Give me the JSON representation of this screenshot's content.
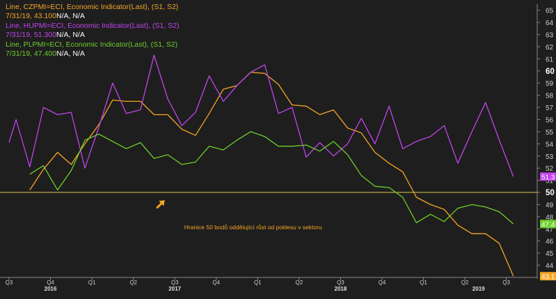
{
  "chart_data": {
    "type": "line",
    "title": "",
    "xlabel": "",
    "ylabel": "",
    "ylim": [
      43,
      65.5
    ],
    "y_ticks": [
      44,
      45,
      46,
      47,
      48,
      49,
      50,
      51,
      52,
      53,
      54,
      55,
      56,
      57,
      58,
      59,
      60,
      61,
      62,
      63,
      64,
      65
    ],
    "y_major_ticks": [
      50,
      60
    ],
    "x_range": [
      0,
      13
    ],
    "x_ticks": [
      {
        "label": "Q3",
        "x": 0
      },
      {
        "label": "Q4",
        "x": 1
      },
      {
        "label": "Q1",
        "x": 2
      },
      {
        "label": "Q2",
        "x": 3
      },
      {
        "label": "Q3",
        "x": 4
      },
      {
        "label": "Q4",
        "x": 5
      },
      {
        "label": "Q1",
        "x": 6
      },
      {
        "label": "Q2",
        "x": 7
      },
      {
        "label": "Q3",
        "x": 8
      },
      {
        "label": "Q4",
        "x": 9
      },
      {
        "label": "Q1",
        "x": 10
      },
      {
        "label": "Q2",
        "x": 11
      },
      {
        "label": "Q3",
        "x": 12
      }
    ],
    "year_labels": [
      {
        "label": "2016",
        "x": 1
      },
      {
        "label": "2017",
        "x": 4
      },
      {
        "label": "2018",
        "x": 8
      },
      {
        "label": "2019",
        "x": 11.33
      }
    ],
    "reference_line": {
      "value": 50,
      "color": "#e6c84a"
    },
    "annotation": {
      "text": "Hranice 50 bodů oddělující růst od poklesu v sektoru",
      "x": 5.1,
      "y": 47.3,
      "color": "#f5a623"
    },
    "arrow_annotation": {
      "x": 3.65,
      "y": 49.0,
      "color": "#f5a623"
    },
    "series": [
      {
        "name": "CZPMI",
        "color": "#f5a623",
        "legend_name": "Line, CZPMI=ECI, Economic Indicator(Last), (S1, S2)",
        "legend_value": "7/31/19, 43.100",
        "legend_extra": "N/A, N/A",
        "last_label": "43.1",
        "x": [
          0.5,
          0.83,
          1.17,
          1.5,
          1.83,
          2.17,
          2.5,
          2.83,
          3.17,
          3.5,
          3.83,
          4.17,
          4.5,
          4.83,
          5.17,
          5.5,
          5.83,
          6.17,
          6.5,
          6.83,
          7.17,
          7.5,
          7.83,
          8.17,
          8.5,
          8.83,
          9.17,
          9.5,
          9.83,
          10.17,
          10.5,
          10.83,
          11.17,
          11.5,
          11.83,
          12.17
        ],
        "values": [
          50.2,
          51.9,
          53.3,
          52.3,
          54.0,
          55.6,
          57.6,
          57.5,
          57.5,
          56.4,
          56.4,
          55.2,
          54.7,
          56.5,
          58.5,
          58.8,
          59.9,
          59.8,
          58.9,
          57.2,
          57.1,
          56.4,
          56.8,
          55.3,
          54.9,
          53.3,
          52.4,
          51.7,
          49.6,
          49.0,
          48.6,
          47.3,
          46.6,
          46.6,
          45.8,
          43.1
        ]
      },
      {
        "name": "HUPMI",
        "color": "#c244ee",
        "legend_name": "Line, HUPMI=ECI, Economic Indicator(Last), (S1, S2)",
        "legend_value": "7/31/19, 51.300",
        "legend_extra": "N/A, N/A",
        "last_label": "51.3",
        "x": [
          0,
          0.17,
          0.5,
          0.83,
          1.17,
          1.5,
          1.83,
          2.17,
          2.5,
          2.83,
          3.17,
          3.5,
          3.83,
          4.17,
          4.5,
          4.83,
          5.17,
          5.5,
          5.83,
          6.17,
          6.5,
          6.83,
          7.17,
          7.5,
          7.83,
          8.17,
          8.5,
          8.83,
          9.17,
          9.5,
          9.83,
          10.17,
          10.5,
          10.83,
          11.17,
          11.5,
          11.83,
          12.17
        ],
        "values": [
          54.1,
          56.0,
          52.1,
          57.0,
          56.4,
          56.6,
          52.0,
          55.4,
          59.0,
          56.5,
          56.8,
          61.3,
          57.7,
          55.5,
          56.6,
          59.6,
          57.5,
          58.8,
          59.9,
          60.5,
          56.5,
          57.0,
          52.9,
          54.1,
          53.0,
          54.0,
          56.1,
          54.0,
          57.1,
          53.6,
          54.2,
          54.6,
          55.5,
          52.4,
          55.0,
          57.4,
          54.3,
          51.3
        ]
      },
      {
        "name": "PLPMI",
        "color": "#6ecf2a",
        "legend_name": "Line, PLPMI=ECI, Economic Indicator(Last), (S1, S2)",
        "legend_value": "7/31/19, 47.400",
        "legend_extra": "N/A, N/A",
        "last_label": "47.4",
        "x": [
          0.5,
          0.83,
          1.17,
          1.5,
          1.83,
          2.17,
          2.5,
          2.83,
          3.17,
          3.5,
          3.83,
          4.17,
          4.5,
          4.83,
          5.17,
          5.5,
          5.83,
          6.17,
          6.5,
          6.83,
          7.17,
          7.5,
          7.83,
          8.17,
          8.5,
          8.83,
          9.17,
          9.5,
          9.83,
          10.17,
          10.5,
          10.83,
          11.17,
          11.5,
          11.83,
          12.17
        ],
        "values": [
          51.5,
          52.2,
          50.2,
          51.8,
          54.3,
          54.8,
          54.2,
          53.6,
          54.1,
          52.8,
          53.1,
          52.3,
          52.5,
          53.8,
          53.5,
          54.3,
          55.0,
          54.6,
          53.8,
          53.8,
          53.9,
          53.4,
          54.2,
          53.1,
          51.4,
          50.5,
          50.4,
          49.6,
          47.5,
          48.2,
          47.6,
          48.7,
          49.0,
          48.8,
          48.4,
          47.4
        ]
      }
    ]
  }
}
